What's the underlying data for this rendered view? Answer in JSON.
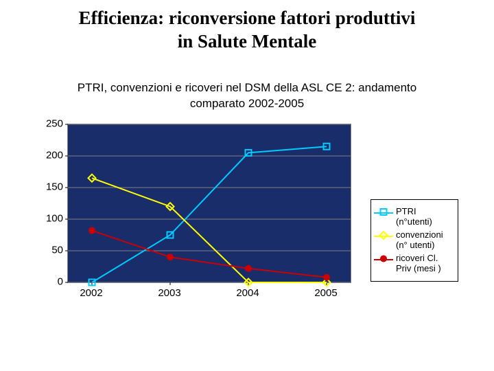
{
  "main_title_line1": "Efficienza: riconversione fattori produttivi",
  "main_title_line2": "in Salute Mentale",
  "chart": {
    "type": "line",
    "title_line1": "PTRI, convenzioni e ricoveri nel DSM della ASL CE 2: andamento",
    "title_line2": "comparato 2002-2005",
    "title_fontsize": 17,
    "plot_background": "#1a2d6b",
    "grid_color": "#808080",
    "axis_color": "#000000",
    "tick_fontsize": 15,
    "ylim": [
      0,
      250
    ],
    "ytick_step": 50,
    "categories": [
      "2002",
      "2003",
      "2004",
      "2005"
    ],
    "series": [
      {
        "name": "PTRI (n°utenti)",
        "color": "#00ccff",
        "marker": "square-open",
        "marker_size": 9,
        "line_width": 2,
        "values": [
          0,
          75,
          205,
          215
        ]
      },
      {
        "name": "convenzioni (n° utenti)",
        "color": "#ffff00",
        "marker": "diamond-open",
        "marker_size": 9,
        "line_width": 2,
        "values": [
          165,
          120,
          0,
          0
        ]
      },
      {
        "name": "ricoveri Cl. Priv (mesi )",
        "color": "#cc0000",
        "marker": "circle-filled",
        "marker_size": 10,
        "line_width": 2,
        "values": [
          82,
          40,
          22,
          8
        ]
      }
    ],
    "legend_position": "right"
  }
}
